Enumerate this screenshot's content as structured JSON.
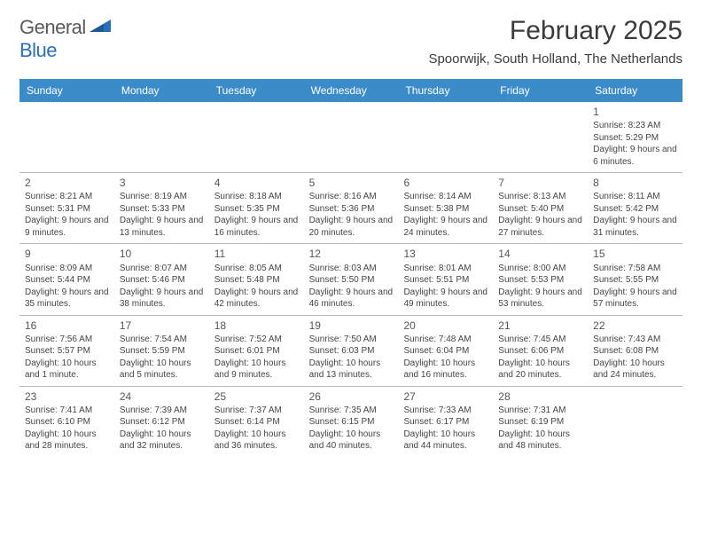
{
  "logo": {
    "text1": "General",
    "text2": "Blue"
  },
  "title": "February 2025",
  "location": "Spoorwijk, South Holland, The Netherlands",
  "header_bg": "#3b8bc9",
  "weekdays": [
    "Sunday",
    "Monday",
    "Tuesday",
    "Wednesday",
    "Thursday",
    "Friday",
    "Saturday"
  ],
  "weeks": [
    [
      null,
      null,
      null,
      null,
      null,
      null,
      {
        "n": "1",
        "sunrise": "8:23 AM",
        "sunset": "5:29 PM",
        "daylight": "9 hours and 6 minutes."
      }
    ],
    [
      {
        "n": "2",
        "sunrise": "8:21 AM",
        "sunset": "5:31 PM",
        "daylight": "9 hours and 9 minutes."
      },
      {
        "n": "3",
        "sunrise": "8:19 AM",
        "sunset": "5:33 PM",
        "daylight": "9 hours and 13 minutes."
      },
      {
        "n": "4",
        "sunrise": "8:18 AM",
        "sunset": "5:35 PM",
        "daylight": "9 hours and 16 minutes."
      },
      {
        "n": "5",
        "sunrise": "8:16 AM",
        "sunset": "5:36 PM",
        "daylight": "9 hours and 20 minutes."
      },
      {
        "n": "6",
        "sunrise": "8:14 AM",
        "sunset": "5:38 PM",
        "daylight": "9 hours and 24 minutes."
      },
      {
        "n": "7",
        "sunrise": "8:13 AM",
        "sunset": "5:40 PM",
        "daylight": "9 hours and 27 minutes."
      },
      {
        "n": "8",
        "sunrise": "8:11 AM",
        "sunset": "5:42 PM",
        "daylight": "9 hours and 31 minutes."
      }
    ],
    [
      {
        "n": "9",
        "sunrise": "8:09 AM",
        "sunset": "5:44 PM",
        "daylight": "9 hours and 35 minutes."
      },
      {
        "n": "10",
        "sunrise": "8:07 AM",
        "sunset": "5:46 PM",
        "daylight": "9 hours and 38 minutes."
      },
      {
        "n": "11",
        "sunrise": "8:05 AM",
        "sunset": "5:48 PM",
        "daylight": "9 hours and 42 minutes."
      },
      {
        "n": "12",
        "sunrise": "8:03 AM",
        "sunset": "5:50 PM",
        "daylight": "9 hours and 46 minutes."
      },
      {
        "n": "13",
        "sunrise": "8:01 AM",
        "sunset": "5:51 PM",
        "daylight": "9 hours and 49 minutes."
      },
      {
        "n": "14",
        "sunrise": "8:00 AM",
        "sunset": "5:53 PM",
        "daylight": "9 hours and 53 minutes."
      },
      {
        "n": "15",
        "sunrise": "7:58 AM",
        "sunset": "5:55 PM",
        "daylight": "9 hours and 57 minutes."
      }
    ],
    [
      {
        "n": "16",
        "sunrise": "7:56 AM",
        "sunset": "5:57 PM",
        "daylight": "10 hours and 1 minute."
      },
      {
        "n": "17",
        "sunrise": "7:54 AM",
        "sunset": "5:59 PM",
        "daylight": "10 hours and 5 minutes."
      },
      {
        "n": "18",
        "sunrise": "7:52 AM",
        "sunset": "6:01 PM",
        "daylight": "10 hours and 9 minutes."
      },
      {
        "n": "19",
        "sunrise": "7:50 AM",
        "sunset": "6:03 PM",
        "daylight": "10 hours and 13 minutes."
      },
      {
        "n": "20",
        "sunrise": "7:48 AM",
        "sunset": "6:04 PM",
        "daylight": "10 hours and 16 minutes."
      },
      {
        "n": "21",
        "sunrise": "7:45 AM",
        "sunset": "6:06 PM",
        "daylight": "10 hours and 20 minutes."
      },
      {
        "n": "22",
        "sunrise": "7:43 AM",
        "sunset": "6:08 PM",
        "daylight": "10 hours and 24 minutes."
      }
    ],
    [
      {
        "n": "23",
        "sunrise": "7:41 AM",
        "sunset": "6:10 PM",
        "daylight": "10 hours and 28 minutes."
      },
      {
        "n": "24",
        "sunrise": "7:39 AM",
        "sunset": "6:12 PM",
        "daylight": "10 hours and 32 minutes."
      },
      {
        "n": "25",
        "sunrise": "7:37 AM",
        "sunset": "6:14 PM",
        "daylight": "10 hours and 36 minutes."
      },
      {
        "n": "26",
        "sunrise": "7:35 AM",
        "sunset": "6:15 PM",
        "daylight": "10 hours and 40 minutes."
      },
      {
        "n": "27",
        "sunrise": "7:33 AM",
        "sunset": "6:17 PM",
        "daylight": "10 hours and 44 minutes."
      },
      {
        "n": "28",
        "sunrise": "7:31 AM",
        "sunset": "6:19 PM",
        "daylight": "10 hours and 48 minutes."
      },
      null
    ]
  ],
  "labels": {
    "sunrise": "Sunrise:",
    "sunset": "Sunset:",
    "daylight": "Daylight:"
  }
}
